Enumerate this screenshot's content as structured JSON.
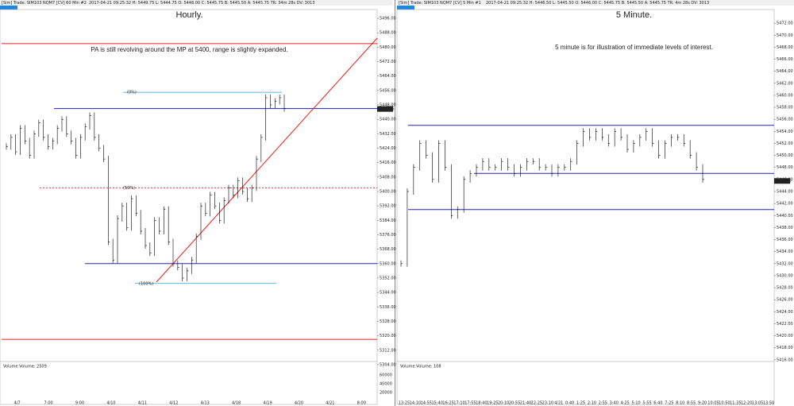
{
  "panels": [
    {
      "header": "[Sim] Trade: SIM103  NQM7 [CV]  60 Min  #2",
      "status": "2017-04-21 09:25:32 H: 5449.75 L: 5444.75 O: 5448.00 C: 5445.75 B: 5445.50 A: 5445.75 TR: 34m 28s DV: 3013",
      "title": "Hourly.",
      "note": "PA is still revolving around the MP at 5400, range is slightly expanded.",
      "ylim": [
        5300,
        5500
      ],
      "yticks": [
        {
          "value": 5304,
          "label": "5304.00"
        },
        {
          "value": 5312,
          "label": "5312.00"
        },
        {
          "value": 5320,
          "label": "5320.00"
        },
        {
          "value": 5328,
          "label": "5328.00"
        },
        {
          "value": 5336,
          "label": "5336.00"
        },
        {
          "value": 5344,
          "label": "5344.00"
        },
        {
          "value": 5352,
          "label": "5352.00"
        },
        {
          "value": 5360,
          "label": "5360.00"
        },
        {
          "value": 5368,
          "label": "5368.00"
        },
        {
          "value": 5376,
          "label": "5376.00"
        },
        {
          "value": 5384,
          "label": "5384.00"
        },
        {
          "value": 5392,
          "label": "5392.00"
        },
        {
          "value": 5400,
          "label": "5400.00"
        },
        {
          "value": 5408,
          "label": "5408.00"
        },
        {
          "value": 5416,
          "label": "5416.00"
        },
        {
          "value": 5424,
          "label": "5424.00"
        },
        {
          "value": 5432,
          "label": "5432.00"
        },
        {
          "value": 5440,
          "label": "5440.00"
        },
        {
          "value": 5448,
          "label": "5448.00"
        },
        {
          "value": 5456,
          "label": "5456.00"
        },
        {
          "value": 5464,
          "label": "5464.00"
        },
        {
          "value": 5472,
          "label": "5472.00"
        },
        {
          "value": 5480,
          "label": "5480.00"
        },
        {
          "value": 5488,
          "label": "5488.00"
        },
        {
          "value": 5496,
          "label": "5496.00"
        }
      ],
      "levels": [
        {
          "value": 5482,
          "color": "#e02020"
        },
        {
          "value": 5446,
          "color": "#2020c0"
        },
        {
          "value": 5360,
          "color": "#2020c0"
        },
        {
          "value": 5318,
          "color": "#e02020"
        }
      ],
      "fibs": [
        {
          "value": 5455,
          "label": "(0%)",
          "color": "#2aa0d0"
        },
        {
          "value": 5402,
          "label": "(50%)",
          "color": "#e02020"
        },
        {
          "value": 5349,
          "label": "(100%)",
          "color": "#2aa0d0"
        }
      ],
      "last": {
        "value": 5445.75,
        "label": "5445.75"
      },
      "prices": [
        5425,
        5430,
        5422,
        5435,
        5428,
        5420,
        5432,
        5438,
        5430,
        5425,
        5428,
        5435,
        5440,
        5432,
        5428,
        5420,
        5430,
        5436,
        5442,
        5430,
        5424,
        5418,
        5372,
        5362,
        5385,
        5392,
        5380,
        5396,
        5388,
        5378,
        5370,
        5366,
        5384,
        5378,
        5390,
        5372,
        5360,
        5358,
        5352,
        5356,
        5362,
        5375,
        5392,
        5388,
        5398,
        5392,
        5384,
        5395,
        5402,
        5398,
        5406,
        5400,
        5396,
        5402,
        5418,
        5430,
        5452,
        5448,
        5450,
        5452,
        5446
      ],
      "volume_label": "Volume  Volume: 2509",
      "volume_ticks": [
        60000,
        40000,
        20000
      ],
      "xlabels": [
        "4/7",
        "7:00",
        "9:00",
        "4/10",
        "4/11",
        "4/12",
        "4/13",
        "4/18",
        "4/19",
        "4/20",
        "4/21",
        "8:00"
      ]
    },
    {
      "header": "[Sim] Trade: SIM103  NQM7 [CV]  5 Min  #1",
      "status": "2017-04-21 09:25:32 H: 5446.50 L: 5445.50 O: 5446.00 C: 5445.75 B: 5445.50 A: 5445.75 TR: 4m 28s DV: 3013",
      "title": "5 Minute.",
      "note": "5 minute is for illustration of immediate levels of interest.",
      "ylim": [
        5414,
        5474
      ],
      "yticks": [
        {
          "value": 5416,
          "label": "5416.00"
        },
        {
          "value": 5418,
          "label": "5418.00"
        },
        {
          "value": 5420,
          "label": "5420.00"
        },
        {
          "value": 5422,
          "label": "5422.00"
        },
        {
          "value": 5424,
          "label": "5424.00"
        },
        {
          "value": 5426,
          "label": "5426.00"
        },
        {
          "value": 5428,
          "label": "5428.00"
        },
        {
          "value": 5430,
          "label": "5430.00"
        },
        {
          "value": 5432,
          "label": "5432.00"
        },
        {
          "value": 5434,
          "label": "5434.00"
        },
        {
          "value": 5436,
          "label": "5436.00"
        },
        {
          "value": 5438,
          "label": "5438.00"
        },
        {
          "value": 5440,
          "label": "5440.00"
        },
        {
          "value": 5442,
          "label": "5442.00"
        },
        {
          "value": 5444,
          "label": "5444.00"
        },
        {
          "value": 5446,
          "label": "5446.00"
        },
        {
          "value": 5448,
          "label": "5448.00"
        },
        {
          "value": 5450,
          "label": "5450.00"
        },
        {
          "value": 5452,
          "label": "5452.00"
        },
        {
          "value": 5454,
          "label": "5454.00"
        },
        {
          "value": 5456,
          "label": "5456.00"
        },
        {
          "value": 5458,
          "label": "5458.00"
        },
        {
          "value": 5460,
          "label": "5460.00"
        },
        {
          "value": 5462,
          "label": "5462.00"
        },
        {
          "value": 5464,
          "label": "5464.00"
        },
        {
          "value": 5466,
          "label": "5466.00"
        },
        {
          "value": 5468,
          "label": "5468.00"
        },
        {
          "value": 5470,
          "label": "5470.00"
        },
        {
          "value": 5472,
          "label": "5472.00"
        }
      ],
      "levels": [
        {
          "value": 5455,
          "color": "#2020c0"
        },
        {
          "value": 5447,
          "color": "#2020c0"
        },
        {
          "value": 5441,
          "color": "#2020c0"
        }
      ],
      "fibs": [],
      "last": {
        "value": 5445.75,
        "label": "5445.75"
      },
      "prices": [
        5432,
        5444,
        5448,
        5452,
        5450,
        5446,
        5452,
        5448,
        5440,
        5441,
        5446,
        5447,
        5448,
        5449,
        5448,
        5448,
        5449,
        5448,
        5447,
        5448,
        5449,
        5449,
        5448,
        5448,
        5447,
        5448,
        5448,
        5449,
        5452,
        5454,
        5453,
        5454,
        5453,
        5452,
        5454,
        5453,
        5451,
        5452,
        5453,
        5454,
        5452,
        5450,
        5452,
        5453,
        5453,
        5452,
        5450,
        5448,
        5446
      ],
      "volume_label": "Volume  Volume: 108",
      "volume_ticks": [],
      "xlabels": [
        "13:25",
        "14:10",
        "14:55",
        "15:40",
        "16:25",
        "17:10",
        "17:55",
        "18:40",
        "19:25",
        "20:10",
        "20:55",
        "21:40",
        "22:25",
        "23:10",
        "4/21",
        "0:40",
        "1:25",
        "2:10",
        "2:55",
        "3:40",
        "4:25",
        "5:10",
        "5:55",
        "6:40",
        "7:25",
        "8:10",
        "8:55",
        "9:20",
        "10:05",
        "10:50",
        "11:35",
        "12:20",
        "13:05",
        "13:50"
      ]
    }
  ]
}
